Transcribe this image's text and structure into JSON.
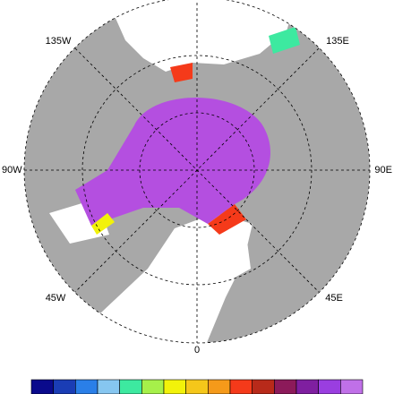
{
  "labels": [
    "135W",
    "135E",
    "90W",
    "90E",
    "45W",
    "45E",
    "0"
  ],
  "colorbar": {
    "colors": [
      "#0a0a8c",
      "#1a3db5",
      "#2a7fe8",
      "#86c6f0",
      "#3de9a0",
      "#a6f04a",
      "#f2f20a",
      "#f5c71a",
      "#f59a1a",
      "#f53a1a",
      "#b82a1a",
      "#8c1a5a",
      "#7f1fa0",
      "#9a3ee0",
      "#c070e8"
    ]
  }
}
